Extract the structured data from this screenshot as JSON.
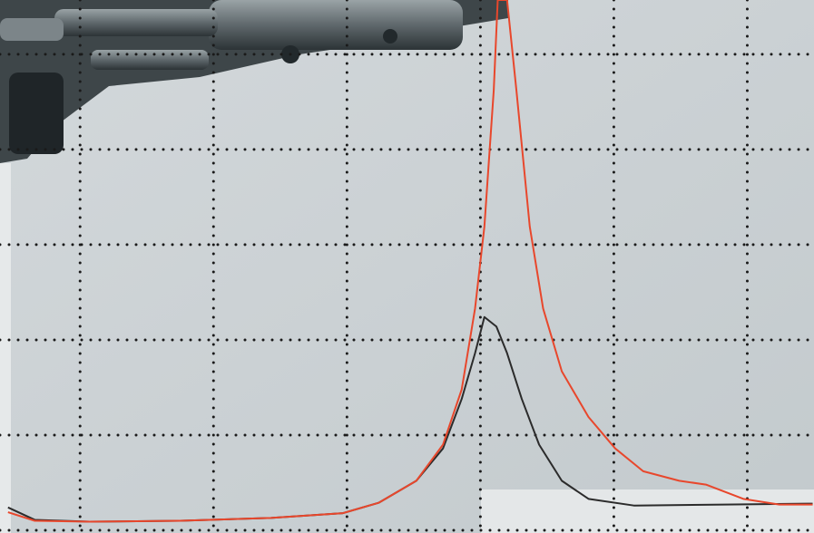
{
  "chart_data": {
    "type": "line",
    "xlim": [
      -0.6,
      5.5
    ],
    "ylim": [
      0,
      5.57
    ],
    "xticks": [
      0,
      1,
      2,
      3,
      4,
      5
    ],
    "yticks": [
      0,
      1,
      2,
      3,
      4,
      5
    ],
    "grid": true,
    "series": [
      {
        "color": "#e8472c",
        "x": [
          -0.54,
          -0.34,
          0.07,
          0.75,
          1.43,
          1.97,
          2.24,
          2.52,
          2.72,
          2.86,
          2.96,
          3.03,
          3.1,
          3.13,
          3.2,
          3.27,
          3.37,
          3.47,
          3.61,
          3.81,
          4.01,
          4.22,
          4.49,
          4.69,
          4.97,
          5.24,
          5.49
        ],
        "values": [
          0.19,
          0.1,
          0.09,
          0.1,
          0.13,
          0.18,
          0.29,
          0.52,
          0.9,
          1.48,
          2.33,
          3.19,
          4.62,
          5.57,
          5.57,
          4.62,
          3.19,
          2.33,
          1.67,
          1.19,
          0.86,
          0.62,
          0.52,
          0.48,
          0.33,
          0.27,
          0.27
        ]
      },
      {
        "color": "#2b2b2b",
        "x": [
          -0.54,
          -0.34,
          0.07,
          0.75,
          1.43,
          1.97,
          2.24,
          2.52,
          2.72,
          2.86,
          2.96,
          3.03,
          3.12,
          3.2,
          3.31,
          3.44,
          3.61,
          3.81,
          4.15,
          4.83,
          5.49
        ],
        "values": [
          0.24,
          0.11,
          0.09,
          0.1,
          0.13,
          0.18,
          0.29,
          0.52,
          0.86,
          1.38,
          1.86,
          2.24,
          2.14,
          1.86,
          1.38,
          0.9,
          0.52,
          0.33,
          0.26,
          0.27,
          0.28
        ]
      }
    ]
  }
}
